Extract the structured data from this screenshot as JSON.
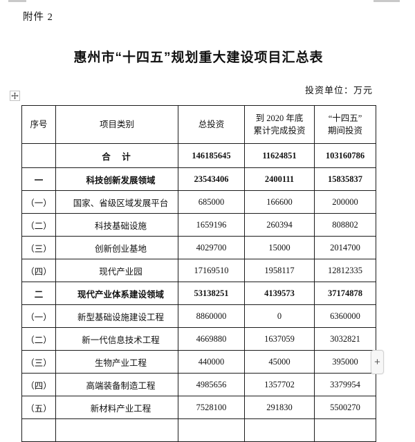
{
  "page": {
    "attachment_label": "附件 2",
    "title": "惠州市“十四五”规划重大建设项目汇总表",
    "unit_note": "投资单位：万元"
  },
  "table": {
    "headers": [
      "序号",
      "项目类别",
      "总投资",
      "到 2020 年底\n累计完成投资",
      "“十四五”\n期间投资"
    ],
    "rows": [
      {
        "no": "",
        "category": "合　计",
        "total": "146185645",
        "done2020": "11624851",
        "period145": "103160786",
        "bold": true,
        "center": true
      },
      {
        "no": "一",
        "category": "科技创新发展领域",
        "total": "23543406",
        "done2020": "2400111",
        "period145": "15835837",
        "bold": true,
        "center": false
      },
      {
        "no": "（一）",
        "category": "国家、省级区域发展平台",
        "total": "685000",
        "done2020": "166600",
        "period145": "200000",
        "bold": false,
        "center": false
      },
      {
        "no": "（二）",
        "category": "科技基础设施",
        "total": "1659196",
        "done2020": "260394",
        "period145": "808802",
        "bold": false,
        "center": false
      },
      {
        "no": "（三）",
        "category": "创新创业基地",
        "total": "4029700",
        "done2020": "15000",
        "period145": "2014700",
        "bold": false,
        "center": false
      },
      {
        "no": "（四）",
        "category": "现代产业园",
        "total": "17169510",
        "done2020": "1958117",
        "period145": "12812335",
        "bold": false,
        "center": false
      },
      {
        "no": "二",
        "category": "现代产业体系建设领域",
        "total": "53138251",
        "done2020": "4139573",
        "period145": "37174878",
        "bold": true,
        "center": false
      },
      {
        "no": "（一）",
        "category": "新型基础设施建设工程",
        "total": "8860000",
        "done2020": "0",
        "period145": "6360000",
        "bold": false,
        "center": false
      },
      {
        "no": "（二）",
        "category": "新一代信息技术工程",
        "total": "4669880",
        "done2020": "1637059",
        "period145": "3032821",
        "bold": false,
        "center": false
      },
      {
        "no": "（三）",
        "category": "生物产业工程",
        "total": "440000",
        "done2020": "45000",
        "period145": "395000",
        "bold": false,
        "center": false
      },
      {
        "no": "（四）",
        "category": "高端装备制造工程",
        "total": "4985656",
        "done2020": "1357702",
        "period145": "3379954",
        "bold": false,
        "center": false
      },
      {
        "no": "（五）",
        "category": "新材料产业工程",
        "total": "7528100",
        "done2020": "291830",
        "period145": "5500270",
        "bold": false,
        "center": false
      },
      {
        "no": "",
        "category": "",
        "total": "",
        "done2020": "",
        "period145": "",
        "bold": false,
        "center": false,
        "tail": true
      }
    ]
  },
  "controls": {
    "insert_button_label": "+"
  }
}
